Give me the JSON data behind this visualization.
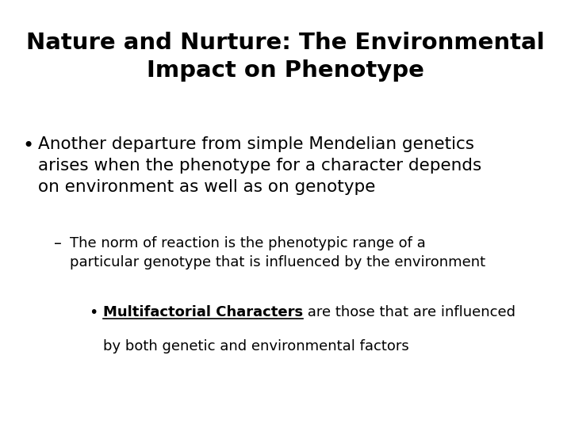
{
  "title_line1": "Nature and Nurture: The Environmental",
  "title_line2": "Impact on Phenotype",
  "background_color": "#ffffff",
  "text_color": "#000000",
  "title_fontsize": 21,
  "bullet1_fontsize": 15.5,
  "sub_bullet_fontsize": 13,
  "sub_sub_bullet_fontsize": 13,
  "bullet1_line1": "Another departure from simple Mendelian genetics",
  "bullet1_line2": "arises when the phenotype for a character depends",
  "bullet1_line3": "on environment as well as on genotype",
  "sub_line1": "The norm of reaction is the phenotypic range of a",
  "sub_line2": "particular genotype that is influenced by the environment",
  "sub_sub_bold": "Multifactorial Characters",
  "sub_sub_rest1": " are those that are influenced",
  "sub_sub_rest2": "by both genetic and environmental factors"
}
